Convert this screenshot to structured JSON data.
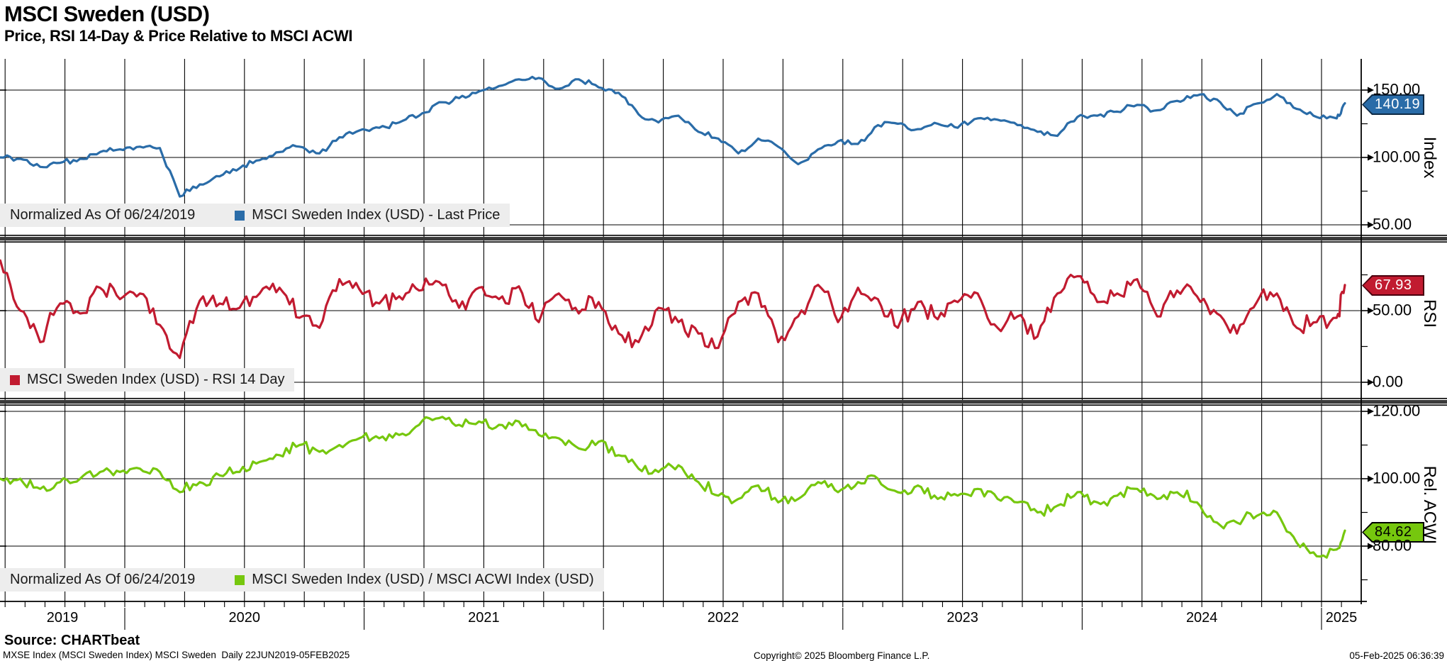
{
  "header": {
    "title": "MSCI Sweden (USD)",
    "subtitle": "Price, RSI 14-Day & Price Relative to MSCI ACWI"
  },
  "colors": {
    "price_blue": "#2A6CA8",
    "rsi_red": "#C11B30",
    "relative_green": "#76C70E",
    "legend_bg": "#EDEDED",
    "separator_gray": "#3A3A3A",
    "grid_black": "#000000"
  },
  "legends": {
    "price": {
      "prefix": "Normalized As Of 06/24/2019",
      "label": "MSCI Sweden Index (USD) - Last Price"
    },
    "rsi": {
      "label": "MSCI Sweden Index (USD) - RSI 14 Day"
    },
    "relative": {
      "prefix": "Normalized As Of 06/24/2019",
      "label": "MSCI Sweden Index (USD) / MSCI ACWI Index (USD)"
    }
  },
  "x_axis": {
    "years": [
      "2019",
      "2020",
      "2021",
      "2022",
      "2023",
      "2024",
      "2025"
    ]
  },
  "chart_data": [
    {
      "type": "line",
      "panel": "price",
      "axis_title": "Index",
      "normalized_as_of": "06/24/2019",
      "x_start": 2019.48,
      "x_step_months": 1,
      "x_range": [
        "22JUN2019",
        "05FEB2025"
      ],
      "ylim": [
        42,
        173
      ],
      "yticks": [
        {
          "value": 150,
          "label": "150.00"
        },
        {
          "value": 100,
          "label": "100.00"
        },
        {
          "value": 50,
          "label": "50.00"
        }
      ],
      "minor_yticks": [
        125,
        75
      ],
      "series": [
        {
          "name": "MSCI Sweden Index (USD) - Last Price",
          "color": "#2A6CA8",
          "values": [
            100,
            99,
            93,
            96,
            99,
            104,
            106,
            108,
            107,
            71,
            80,
            86,
            92,
            98,
            104,
            108,
            103,
            115,
            120,
            122,
            126,
            131,
            141,
            144,
            149,
            153,
            158,
            159,
            151,
            158,
            152,
            148,
            132,
            126,
            131,
            119,
            114,
            103,
            114,
            108,
            95,
            106,
            112,
            110,
            124,
            125,
            121,
            125,
            122,
            129,
            128,
            124,
            119,
            116,
            130,
            131,
            134,
            139,
            135,
            142,
            146,
            143,
            131,
            140,
            147,
            136,
            130,
            129,
            140.19
          ]
        }
      ],
      "last_value": 140.19,
      "last_label": "140.19"
    },
    {
      "type": "line",
      "panel": "rsi",
      "axis_title": "RSI",
      "x_start": 2019.48,
      "x_step_months": 1,
      "ylim": [
        -12,
        98
      ],
      "yticks": [
        {
          "value": 50,
          "label": "50.00"
        },
        {
          "value": 0,
          "label": "0.00"
        }
      ],
      "minor_yticks": [
        75,
        25
      ],
      "series": [
        {
          "name": "MSCI Sweden Index (USD) - RSI 14 Day",
          "color": "#C11B30",
          "values": [
            85,
            50,
            28,
            55,
            48,
            66,
            58,
            62,
            40,
            17,
            57,
            55,
            52,
            62,
            66,
            45,
            38,
            72,
            65,
            55,
            60,
            64,
            70,
            52,
            66,
            58,
            67,
            42,
            62,
            48,
            56,
            34,
            28,
            52,
            42,
            34,
            24,
            56,
            62,
            28,
            46,
            68,
            42,
            66,
            58,
            38,
            56,
            44,
            56,
            62,
            38,
            46,
            32,
            62,
            74,
            56,
            62,
            72,
            46,
            64,
            60,
            48,
            34,
            56,
            62,
            38,
            42,
            45,
            67.93
          ]
        }
      ],
      "last_value": 67.93,
      "last_label": "67.93"
    },
    {
      "type": "line",
      "panel": "relative",
      "axis_title": "Rel. ACWI",
      "normalized_as_of": "06/24/2019",
      "x_start": 2019.48,
      "x_step_months": 1,
      "ylim": [
        63,
        122
      ],
      "yticks": [
        {
          "value": 120,
          "label": "120.00"
        },
        {
          "value": 100,
          "label": "100.00"
        },
        {
          "value": 80,
          "label": "80.00"
        }
      ],
      "minor_yticks": [
        110,
        90,
        70
      ],
      "series": [
        {
          "name": "MSCI Sweden Index (USD) / MSCI ACWI Index (USD)",
          "color": "#76C70E",
          "values": [
            100,
            100,
            97,
            99,
            100,
            102,
            102,
            103,
            102,
            96,
            99,
            101,
            102,
            105,
            107,
            110,
            108,
            110,
            112,
            112,
            113,
            116,
            118,
            116,
            117,
            116,
            117,
            113,
            112,
            109,
            111,
            107,
            103,
            102,
            104,
            99,
            95,
            94,
            98,
            93,
            94,
            99,
            96,
            99,
            100,
            96,
            98,
            94,
            95,
            97,
            94,
            93,
            90,
            92,
            96,
            93,
            95,
            97,
            94,
            96,
            93,
            87,
            87,
            89,
            90,
            81,
            77,
            79,
            84.62
          ]
        }
      ],
      "last_value": 84.62,
      "last_label": "84.62"
    }
  ],
  "footer": {
    "source": "Source: CHARTbeat",
    "meta": "MXSE Index (MSCI Sweden Index) MSCI Sweden  Daily 22JUN2019-05FEB2025",
    "copyright": "Copyright© 2025 Bloomberg Finance L.P.",
    "timestamp": "05-Feb-2025 06:36:39"
  }
}
